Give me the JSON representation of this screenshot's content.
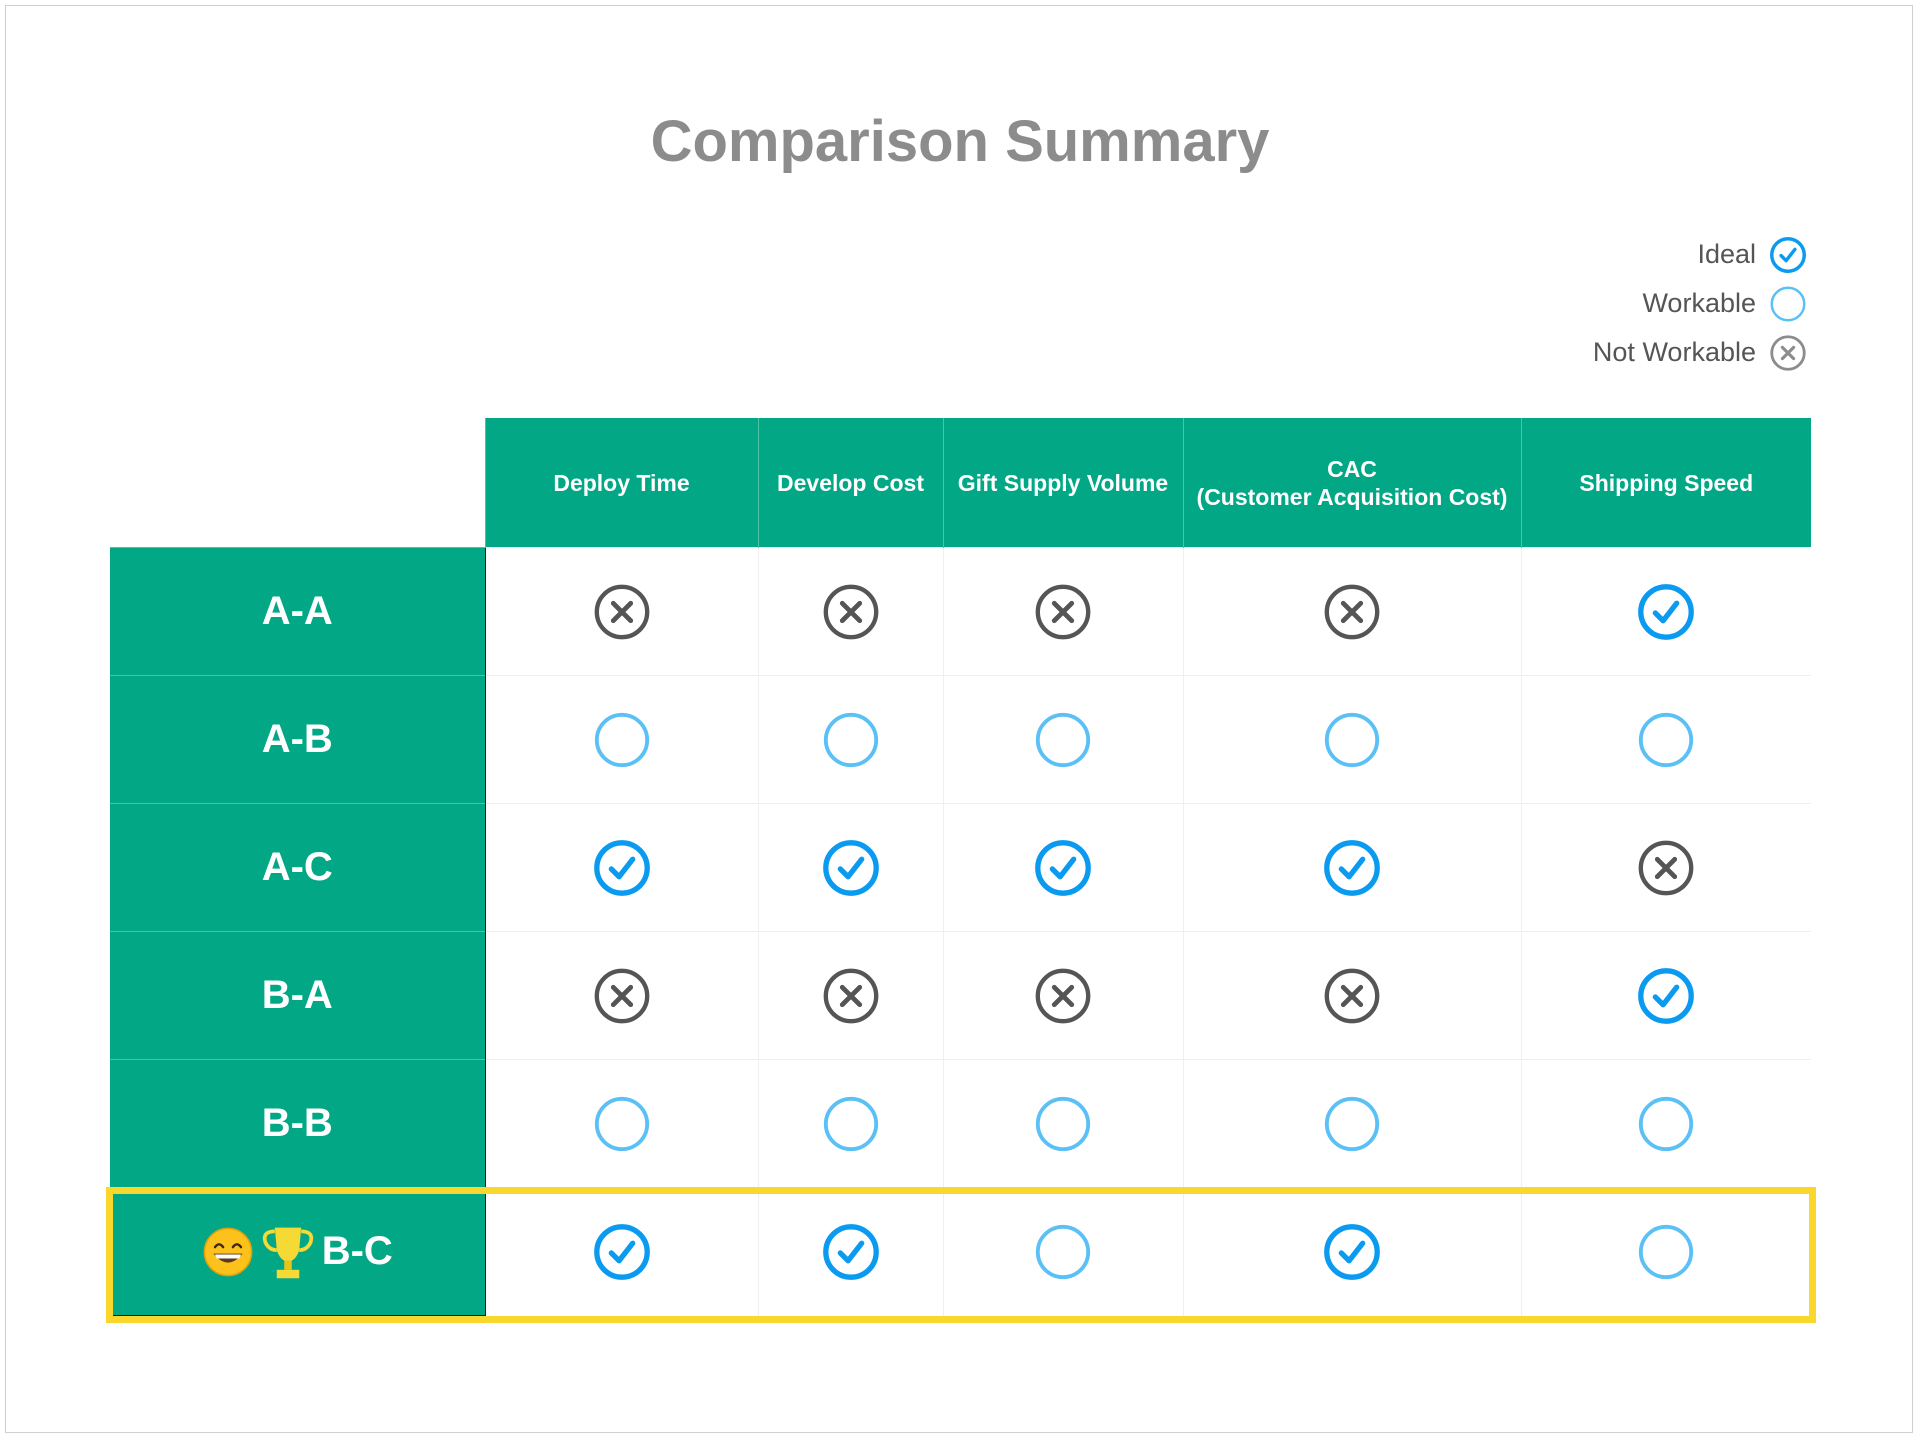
{
  "title": "Comparison Summary",
  "colors": {
    "header_green": "#02a886",
    "ideal_blue": "#0a9bf0",
    "workable_blue": "#5bc0f5",
    "not_workable_gray": "#555555",
    "highlight_yellow": "#f9d72c"
  },
  "legend": [
    {
      "label": "Ideal",
      "status": "ideal",
      "icon": "check-circle-icon"
    },
    {
      "label": "Workable",
      "status": "workable",
      "icon": "circle-icon"
    },
    {
      "label": "Not Workable",
      "status": "not_workable",
      "icon": "x-circle-icon"
    }
  ],
  "columns": [
    "Deploy Time",
    "Develop Cost",
    "Gift Supply Volume",
    "CAC\n(Customer Acquisition Cost)",
    "Shipping Speed"
  ],
  "rows": [
    {
      "label": "A-A",
      "highlighted": false,
      "cells": [
        "not_workable",
        "not_workable",
        "not_workable",
        "not_workable",
        "ideal"
      ]
    },
    {
      "label": "A-B",
      "highlighted": false,
      "cells": [
        "workable",
        "workable",
        "workable",
        "workable",
        "workable"
      ]
    },
    {
      "label": "A-C",
      "highlighted": false,
      "cells": [
        "ideal",
        "ideal",
        "ideal",
        "ideal",
        "not_workable"
      ]
    },
    {
      "label": "B-A",
      "highlighted": false,
      "cells": [
        "not_workable",
        "not_workable",
        "not_workable",
        "not_workable",
        "ideal"
      ]
    },
    {
      "label": "B-B",
      "highlighted": false,
      "cells": [
        "workable",
        "workable",
        "workable",
        "workable",
        "workable"
      ]
    },
    {
      "label": "B-C",
      "highlighted": true,
      "icons": [
        "grinning-face-icon",
        "trophy-icon"
      ],
      "cells": [
        "ideal",
        "ideal",
        "workable",
        "ideal",
        "workable"
      ]
    }
  ]
}
